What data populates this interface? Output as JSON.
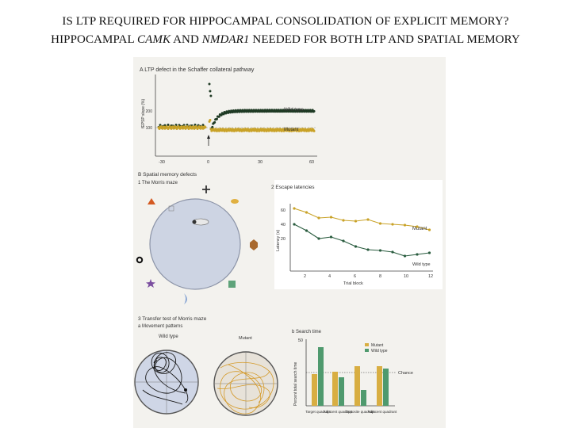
{
  "slide": {
    "title_line1": "IS LTP REQUIRED FOR HIPPOCAMPAL CONSOLIDATION OF EXPLICIT MEMORY?",
    "title_line2_parts": [
      "HIPPOCAMPAL ",
      "CAMK",
      " AND ",
      "NMDAR1",
      " NEEDED FOR BOTH LTP AND SPATIAL MEMORY"
    ]
  },
  "figure": {
    "panel_a": {
      "label": "A  LTP defect in the Schaffer collateral pathway",
      "ylabel": "fEPSP slope (%)",
      "xticks": [
        "-30",
        "0",
        "30",
        "60"
      ],
      "series": [
        {
          "name": "Wild type"
        },
        {
          "name": "Mutant"
        }
      ],
      "colors": {
        "wild_type": "#1f3a24",
        "mutant": "#c9a227"
      }
    },
    "panel_b": {
      "label": "B  Spatial memory defects",
      "sub1": "1  The Morris maze",
      "sub2": "2  Escape latencies",
      "ylabel": "Latency (s)",
      "xlabel": "Trial block",
      "yticks": [
        "60",
        "40",
        "20"
      ],
      "xticks": [
        "2",
        "4",
        "6",
        "8",
        "10",
        "12"
      ],
      "series": [
        {
          "name": "Mutant"
        },
        {
          "name": "Wild type"
        }
      ]
    },
    "panel_c": {
      "label": "3  Transfer test of Morris maze",
      "sub_a": "a  Movement patterns",
      "maze1": "Wild type",
      "maze2": "Mutant",
      "sub_b": "b  Search time",
      "ytick_top": "50",
      "ylabel": "Percent total search time",
      "chance": "Chance",
      "legend": [
        "Mutant",
        "Wild type"
      ],
      "categories": [
        "Target quadrant",
        "Adjacent quadrant",
        "Opposite quadrant",
        "Adjacent quadrant"
      ]
    }
  }
}
